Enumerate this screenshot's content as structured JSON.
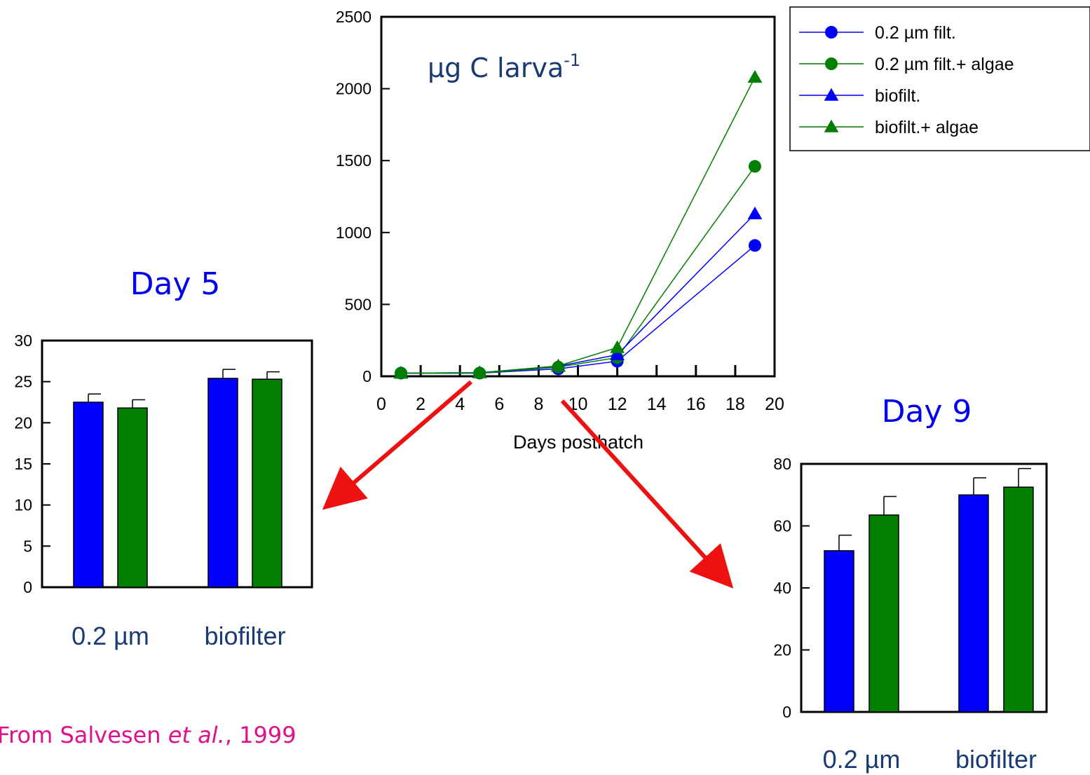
{
  "colors": {
    "blue": "#0000ff",
    "green": "#007f00",
    "arrow": "#ee1111",
    "label_text": "#1a3a73",
    "handwritten_title": "#0000ee",
    "source_text": "#e0108a"
  },
  "source_note": {
    "prefix": "From Salvesen ",
    "italic": "et al.",
    "suffix": ", 1999"
  },
  "chart_data": [
    {
      "type": "line",
      "title": "",
      "annotation": {
        "main": "µg C larva",
        "superscript": "-1"
      },
      "xlabel": "Days posthatch",
      "ylabel": "",
      "xlim": [
        0,
        20
      ],
      "ylim": [
        0,
        2500
      ],
      "x_ticks": [
        0,
        2,
        4,
        6,
        8,
        10,
        12,
        14,
        16,
        18,
        20
      ],
      "y_ticks": [
        0,
        500,
        1000,
        1500,
        2000,
        2500
      ],
      "legend_position": "top-right, outside plot",
      "series": [
        {
          "name": "0.2 µm filt.",
          "color": "#0000ff",
          "marker": "circle",
          "x": [
            1,
            5,
            9,
            12,
            19
          ],
          "y": [
            22,
            22,
            52,
            105,
            910
          ]
        },
        {
          "name": "0.2 µm filt.+ algae",
          "color": "#007f00",
          "marker": "circle",
          "x": [
            1,
            5,
            9,
            12,
            19
          ],
          "y": [
            22,
            22,
            64,
            130,
            1460
          ]
        },
        {
          "name": "biofilt.",
          "color": "#0000ff",
          "marker": "triangle",
          "x": [
            1,
            5,
            9,
            12,
            19
          ],
          "y": [
            22,
            25,
            70,
            150,
            1130
          ]
        },
        {
          "name": "biofilt.+ algae",
          "color": "#007f00",
          "marker": "triangle",
          "x": [
            1,
            5,
            9,
            12,
            19
          ],
          "y": [
            22,
            25,
            72,
            200,
            2080
          ]
        }
      ]
    },
    {
      "type": "bar",
      "title": "Day 5",
      "categories": [
        "0.2 µm",
        "biofilter"
      ],
      "ylim": [
        0,
        30
      ],
      "y_ticks": [
        0,
        5,
        10,
        15,
        20,
        25,
        30
      ],
      "series": [
        {
          "color": "#0000ff",
          "values": [
            22.5,
            25.4
          ],
          "errors": [
            1.0,
            1.1
          ]
        },
        {
          "color": "#007f00",
          "values": [
            21.8,
            25.3
          ],
          "errors": [
            1.0,
            0.9
          ]
        }
      ]
    },
    {
      "type": "bar",
      "title": "Day 9",
      "categories": [
        "0.2 µm",
        "biofilter"
      ],
      "ylim": [
        0,
        80
      ],
      "y_ticks": [
        0,
        20,
        40,
        60,
        80
      ],
      "series": [
        {
          "color": "#0000ff",
          "values": [
            52,
            70
          ],
          "errors": [
            5,
            5.5
          ]
        },
        {
          "color": "#007f00",
          "values": [
            63.5,
            72.5
          ],
          "errors": [
            6,
            6
          ]
        }
      ]
    }
  ]
}
